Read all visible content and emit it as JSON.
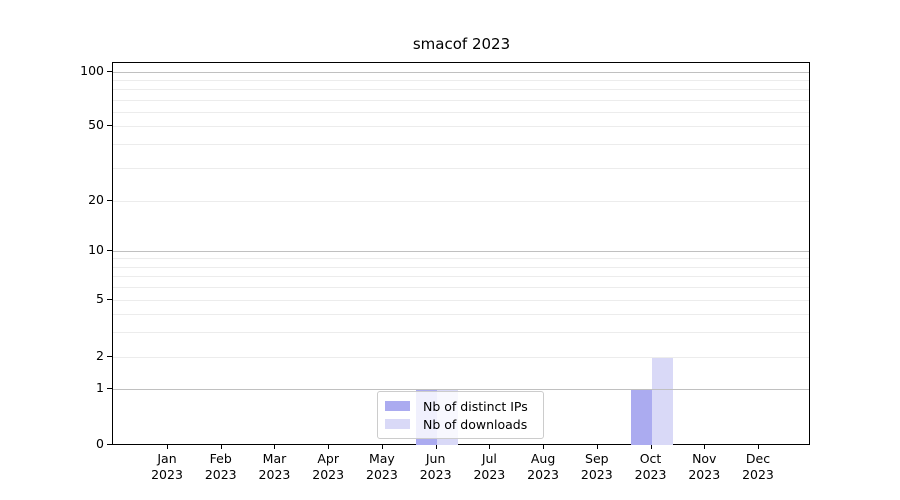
{
  "chart_data": {
    "type": "bar",
    "title": "smacof 2023",
    "categories": [
      {
        "month": "Jan",
        "year": "2023"
      },
      {
        "month": "Feb",
        "year": "2023"
      },
      {
        "month": "Mar",
        "year": "2023"
      },
      {
        "month": "Apr",
        "year": "2023"
      },
      {
        "month": "May",
        "year": "2023"
      },
      {
        "month": "Jun",
        "year": "2023"
      },
      {
        "month": "Jul",
        "year": "2023"
      },
      {
        "month": "Aug",
        "year": "2023"
      },
      {
        "month": "Sep",
        "year": "2023"
      },
      {
        "month": "Oct",
        "year": "2023"
      },
      {
        "month": "Nov",
        "year": "2023"
      },
      {
        "month": "Dec",
        "year": "2023"
      }
    ],
    "series": [
      {
        "name": "Nb of distinct IPs",
        "color": "#ababf0",
        "values": [
          0,
          0,
          0,
          0,
          0,
          1,
          0,
          0,
          0,
          1,
          0,
          0
        ]
      },
      {
        "name": "Nb of downloads",
        "color": "#d9d9f7",
        "values": [
          0,
          0,
          0,
          0,
          0,
          1,
          0,
          0,
          0,
          2,
          0,
          0
        ]
      }
    ],
    "y_axis": {
      "scale": "symlog",
      "tick_values": [
        0,
        1,
        2,
        5,
        10,
        20,
        50,
        100
      ],
      "major_grid_values": [
        1,
        10,
        100
      ],
      "minor_grid_values": [
        2,
        3,
        4,
        5,
        6,
        7,
        8,
        9,
        20,
        30,
        40,
        50,
        60,
        70,
        80,
        90
      ]
    },
    "legend_position": "lower center",
    "grid": true
  }
}
